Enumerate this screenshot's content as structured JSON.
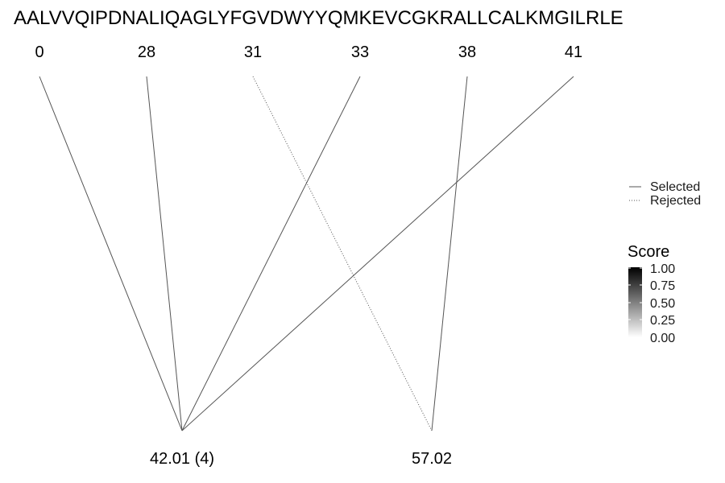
{
  "sequence": "AALVVQIPDNALIQAGLYFGVDWYYQMKEVCGKRALLCALKMGILRLE",
  "top_nodes": [
    "0",
    "28",
    "31",
    "33",
    "38",
    "41"
  ],
  "bottom_nodes": [
    "42.01 (4)",
    "57.02"
  ],
  "edges": [
    {
      "from": 0,
      "to": 0,
      "status": "Selected"
    },
    {
      "from": 1,
      "to": 0,
      "status": "Selected"
    },
    {
      "from": 3,
      "to": 0,
      "status": "Selected"
    },
    {
      "from": 5,
      "to": 0,
      "status": "Selected"
    },
    {
      "from": 2,
      "to": 1,
      "status": "Rejected"
    },
    {
      "from": 4,
      "to": 1,
      "status": "Selected"
    }
  ],
  "legend": {
    "line_types": [
      {
        "label": "Selected",
        "style": "solid"
      },
      {
        "label": "Rejected",
        "style": "dotted"
      }
    ],
    "score": {
      "title": "Score",
      "ticks": [
        "1.00",
        "0.75",
        "0.50",
        "0.25",
        "0.00"
      ],
      "color_high": "#000000",
      "color_low": "#ffffff"
    }
  },
  "colors": {
    "edge": "#555555",
    "text": "#000000"
  }
}
